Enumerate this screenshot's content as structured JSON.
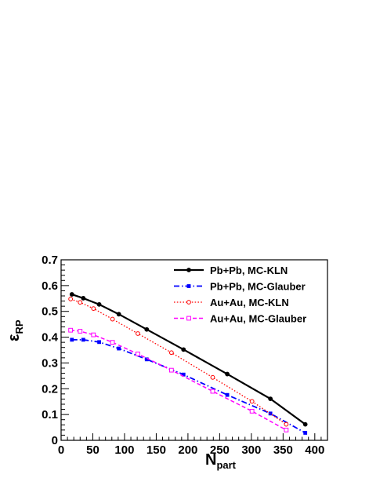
{
  "chart_data": {
    "type": "line",
    "title": "",
    "xlabel": "N",
    "xlabel_sub": "part",
    "ylabel": "ε",
    "ylabel_sub": "RP",
    "xlim": [
      0,
      420
    ],
    "ylim": [
      0,
      0.7
    ],
    "xticks": [
      0,
      50,
      100,
      150,
      200,
      250,
      300,
      350,
      400
    ],
    "yticks": [
      0,
      0.1,
      0.2,
      0.3,
      0.4,
      0.5,
      0.6,
      0.7
    ],
    "xtick_labels": [
      "0",
      "50",
      "100",
      "150",
      "200",
      "250",
      "300",
      "350",
      "400"
    ],
    "ytick_labels": [
      "0",
      "0.1",
      "0.2",
      "0.3",
      "0.4",
      "0.5",
      "0.6",
      "0.7"
    ],
    "grid": false,
    "legend_position": "top-right",
    "series": [
      {
        "name": "Pb+Pb, MC-KLN",
        "color": "#000000",
        "dash": "solid",
        "marker": "filled-circle",
        "x": [
          17,
          35,
          60,
          91,
          135,
          193,
          262,
          330,
          385
        ],
        "y": [
          0.566,
          0.551,
          0.527,
          0.489,
          0.43,
          0.352,
          0.257,
          0.161,
          0.062
        ]
      },
      {
        "name": "Pb+Pb, MC-Glauber",
        "color": "#0000ff",
        "dash": "dashdot",
        "marker": "filled-square",
        "x": [
          17,
          35,
          60,
          91,
          135,
          193,
          262,
          330,
          385
        ],
        "y": [
          0.39,
          0.39,
          0.381,
          0.356,
          0.314,
          0.255,
          0.176,
          0.104,
          0.029
        ]
      },
      {
        "name": "Au+Au, MC-KLN",
        "color": "#ff0000",
        "dash": "dotted",
        "marker": "open-circle",
        "x": [
          15,
          30,
          51,
          81,
          121,
          174,
          239,
          301,
          355
        ],
        "y": [
          0.548,
          0.535,
          0.511,
          0.47,
          0.414,
          0.34,
          0.244,
          0.151,
          0.062
        ]
      },
      {
        "name": "Au+Au, MC-Glauber",
        "color": "#ff00ff",
        "dash": "dashed",
        "marker": "open-square",
        "x": [
          15,
          30,
          51,
          81,
          121,
          174,
          239,
          301,
          355
        ],
        "y": [
          0.427,
          0.423,
          0.409,
          0.38,
          0.335,
          0.272,
          0.19,
          0.113,
          0.04
        ]
      }
    ]
  }
}
